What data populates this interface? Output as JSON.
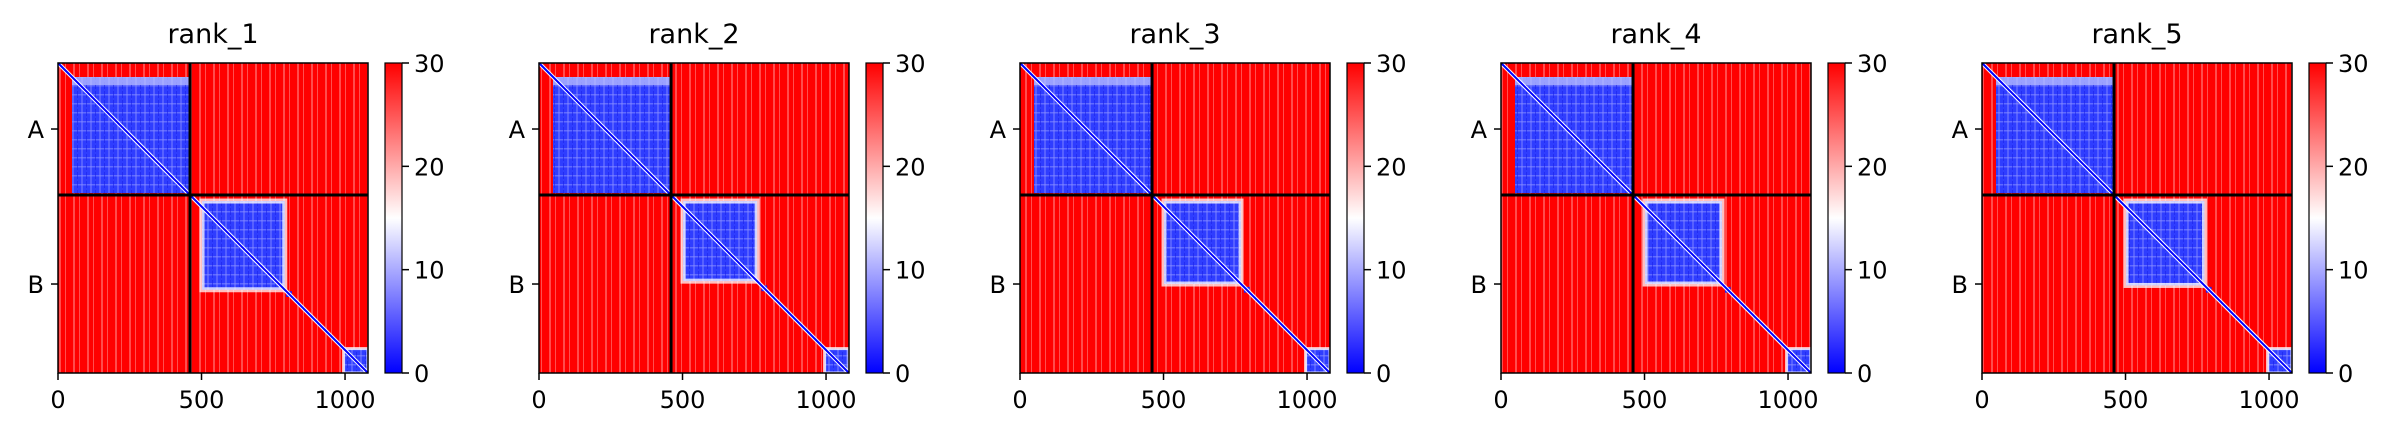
{
  "chart_data": [
    {
      "type": "heatmap",
      "title": "rank_1",
      "xlabel": "",
      "ylabel": "",
      "xlim": [
        0,
        1080
      ],
      "xticks": [
        0,
        500,
        1000
      ],
      "y_categories": [
        "A",
        "B"
      ],
      "chain_boundary": 460,
      "total_length": 1080,
      "colorbar": {
        "range": [
          0,
          30
        ],
        "ticks": [
          0,
          10,
          20,
          30
        ]
      },
      "low_region": {
        "A": [
          0,
          460
        ],
        "B": [
          460,
          790
        ],
        "B_tail": [
          795,
          815
        ],
        "B_end": [
          995,
          1080
        ]
      }
    },
    {
      "type": "heatmap",
      "title": "rank_2",
      "xlabel": "",
      "ylabel": "",
      "xlim": [
        0,
        1080
      ],
      "xticks": [
        0,
        500,
        1000
      ],
      "y_categories": [
        "A",
        "B"
      ],
      "chain_boundary": 460,
      "total_length": 1080,
      "colorbar": {
        "range": [
          0,
          30
        ],
        "ticks": [
          0,
          10,
          20,
          30
        ]
      },
      "low_region": {
        "A": [
          0,
          460
        ],
        "B": [
          460,
          760
        ],
        "B_tail": [
          775,
          795
        ],
        "B_end": [
          995,
          1080
        ]
      }
    },
    {
      "type": "heatmap",
      "title": "rank_3",
      "xlabel": "",
      "ylabel": "",
      "xlim": [
        0,
        1080
      ],
      "xticks": [
        0,
        500,
        1000
      ],
      "y_categories": [
        "A",
        "B"
      ],
      "chain_boundary": 460,
      "total_length": 1080,
      "colorbar": {
        "range": [
          0,
          30
        ],
        "ticks": [
          0,
          10,
          20,
          30
        ]
      },
      "low_region": {
        "A": [
          0,
          460
        ],
        "B": [
          460,
          770
        ],
        "B_tail": [
          780,
          800
        ],
        "B_end": [
          995,
          1080
        ]
      }
    },
    {
      "type": "heatmap",
      "title": "rank_4",
      "xlabel": "",
      "ylabel": "",
      "xlim": [
        0,
        1080
      ],
      "xticks": [
        0,
        500,
        1000
      ],
      "y_categories": [
        "A",
        "B"
      ],
      "chain_boundary": 460,
      "total_length": 1080,
      "colorbar": {
        "range": [
          0,
          30
        ],
        "ticks": [
          0,
          10,
          20,
          30
        ]
      },
      "low_region": {
        "A": [
          0,
          460
        ],
        "B": [
          460,
          770
        ],
        "B_tail": [
          780,
          800
        ],
        "B_end": [
          995,
          1080
        ]
      }
    },
    {
      "type": "heatmap",
      "title": "rank_5",
      "xlabel": "",
      "ylabel": "",
      "xlim": [
        0,
        1080
      ],
      "xticks": [
        0,
        500,
        1000
      ],
      "y_categories": [
        "A",
        "B"
      ],
      "chain_boundary": 460,
      "total_length": 1080,
      "colorbar": {
        "range": [
          0,
          30
        ],
        "ticks": [
          0,
          10,
          20,
          30
        ]
      },
      "low_region": {
        "A": [
          0,
          460
        ],
        "B": [
          460,
          775
        ],
        "B_tail": [
          780,
          800
        ],
        "B_end": [
          995,
          1080
        ]
      }
    }
  ],
  "colors": {
    "high": "#ff0000",
    "mid": "#ffffff",
    "low": "#0000ff",
    "frame": "#000000"
  }
}
